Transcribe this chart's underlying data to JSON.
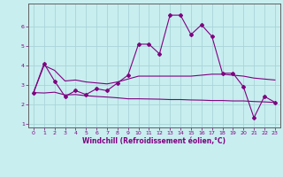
{
  "title": "",
  "xlabel": "Windchill (Refroidissement éolien,°C)",
  "ylabel": "",
  "bg_color": "#c8eef0",
  "line_color": "#800080",
  "grid_color": "#a8d4d8",
  "x_values": [
    0,
    1,
    2,
    3,
    4,
    5,
    6,
    7,
    8,
    9,
    10,
    11,
    12,
    13,
    14,
    15,
    16,
    17,
    18,
    19,
    20,
    21,
    22,
    23
  ],
  "series1": [
    2.6,
    4.1,
    3.2,
    2.4,
    2.7,
    2.5,
    2.8,
    2.7,
    3.1,
    3.5,
    5.1,
    5.1,
    4.6,
    6.6,
    6.6,
    5.6,
    6.1,
    5.5,
    3.6,
    3.6,
    2.9,
    1.3,
    2.4,
    2.1
  ],
  "series2": [
    2.6,
    4.0,
    3.75,
    3.2,
    3.25,
    3.15,
    3.1,
    3.05,
    3.15,
    3.3,
    3.45,
    3.45,
    3.45,
    3.45,
    3.45,
    3.45,
    3.5,
    3.55,
    3.55,
    3.5,
    3.45,
    3.35,
    3.3,
    3.25
  ],
  "series3": [
    2.6,
    2.58,
    2.62,
    2.48,
    2.5,
    2.44,
    2.4,
    2.37,
    2.33,
    2.28,
    2.28,
    2.27,
    2.26,
    2.24,
    2.24,
    2.22,
    2.21,
    2.19,
    2.19,
    2.17,
    2.17,
    2.14,
    2.12,
    2.09
  ],
  "ylim": [
    0.8,
    7.2
  ],
  "xlim": [
    -0.5,
    23.5
  ],
  "yticks": [
    1,
    2,
    3,
    4,
    5,
    6
  ],
  "xticks": [
    0,
    1,
    2,
    3,
    4,
    5,
    6,
    7,
    8,
    9,
    10,
    11,
    12,
    13,
    14,
    15,
    16,
    17,
    18,
    19,
    20,
    21,
    22,
    23
  ],
  "xlabel_color": "#800080",
  "tick_label_color": "#800080",
  "figsize": [
    3.2,
    2.0
  ],
  "dpi": 100
}
